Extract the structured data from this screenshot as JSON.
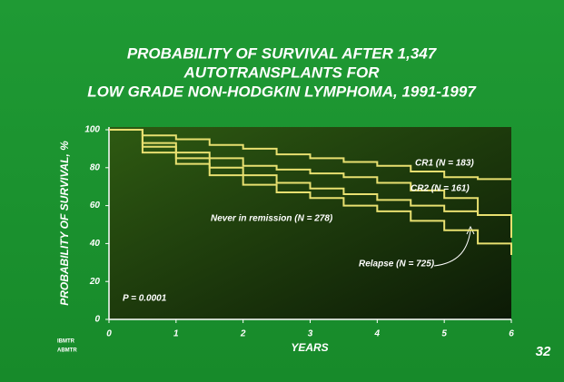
{
  "chart_data": {
    "type": "line",
    "title": [
      "PROBABILITY OF SURVIVAL AFTER 1,347",
      "AUTOTRANSPLANTS FOR",
      "LOW GRADE NON-HODGKIN LYMPHOMA, 1991-1997"
    ],
    "x_label": "YEARS",
    "y_label": "PROBABILITY OF SURVIVAL, %",
    "annotations": [
      "P = 0.0001"
    ],
    "slide_number": "32",
    "logo": [
      "IBMTR",
      "ABMTR"
    ],
    "x": [
      0,
      0.5,
      1,
      1.5,
      2,
      2.5,
      3,
      3.5,
      4,
      4.5,
      5,
      5.5,
      6
    ],
    "series": [
      {
        "name": "CR1 (N = 183)",
        "color": "#e8e070",
        "values": [
          100,
          97,
          95,
          92,
          90,
          87,
          85,
          83,
          81,
          78,
          75,
          74,
          74
        ]
      },
      {
        "name": "CR2 (N = 161)",
        "color": "#e8e070",
        "values": [
          100,
          93,
          88,
          85,
          81,
          79,
          77,
          75,
          72,
          68,
          64,
          55,
          43
        ]
      },
      {
        "name": "Never in remission (N = 278)",
        "color": "#e8e070",
        "values": [
          100,
          88,
          82,
          76,
          71,
          67,
          64,
          60,
          57,
          52,
          47,
          40,
          34
        ]
      },
      {
        "name": "Relapse (N = 725)",
        "color": "#e8e070",
        "values": [
          100,
          91,
          85,
          80,
          76,
          72,
          69,
          66,
          63,
          60,
          57,
          55,
          55
        ]
      }
    ],
    "xlim": [
      0,
      6
    ],
    "xticks": [
      0,
      1,
      2,
      3,
      4,
      5,
      6
    ],
    "ylim": [
      0,
      100
    ],
    "yticks": [
      0,
      20,
      40,
      60,
      80,
      100
    ]
  }
}
